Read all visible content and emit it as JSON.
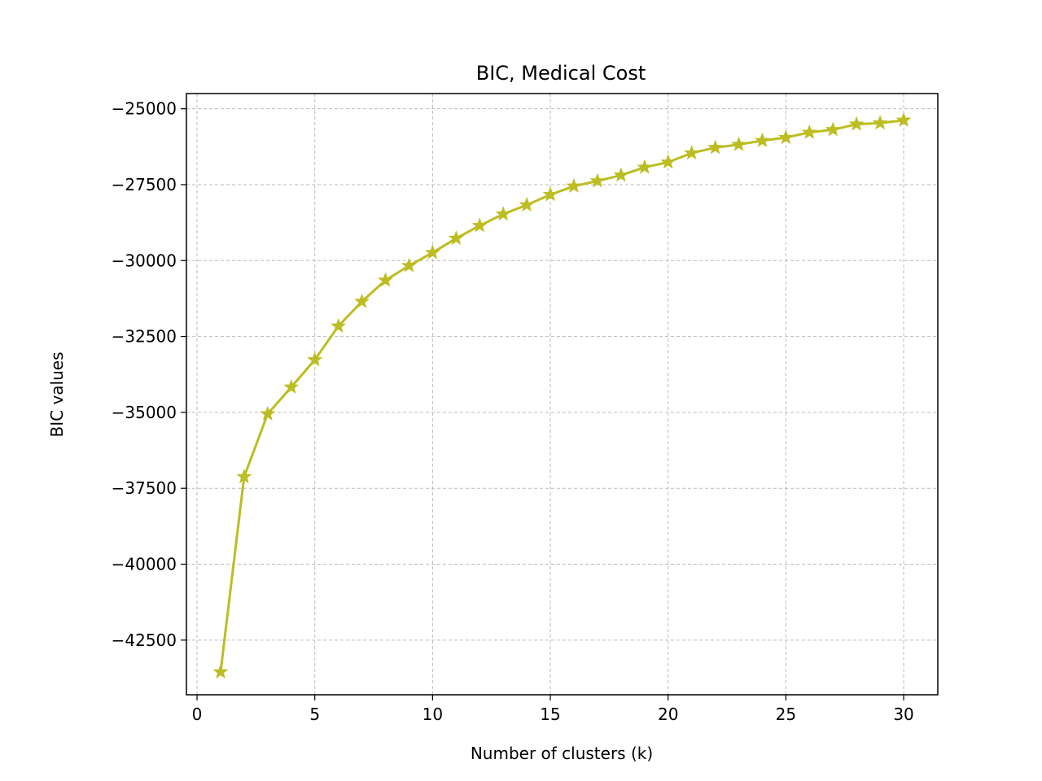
{
  "chart_data": {
    "type": "line",
    "title": "BIC, Medical Cost",
    "xlabel": "Number of clusters (k)",
    "ylabel": "BIC values",
    "xlim": [
      -0.45,
      31.45
    ],
    "ylim": [
      -44300,
      -24500
    ],
    "xticks": [
      0,
      5,
      10,
      15,
      20,
      25,
      30
    ],
    "xtick_labels": [
      "0",
      "5",
      "10",
      "15",
      "20",
      "25",
      "30"
    ],
    "yticks": [
      -25000,
      -27500,
      -30000,
      -32500,
      -35000,
      -37500,
      -40000,
      -42500
    ],
    "ytick_labels": [
      "−25000",
      "−27500",
      "−30000",
      "−32500",
      "−35000",
      "−37500",
      "−40000",
      "−42500"
    ],
    "grid": true,
    "color": "#bcbd22",
    "marker": "star",
    "x": [
      1,
      2,
      3,
      4,
      5,
      6,
      7,
      8,
      9,
      10,
      11,
      12,
      13,
      14,
      15,
      16,
      17,
      18,
      19,
      20,
      21,
      22,
      23,
      24,
      25,
      26,
      27,
      28,
      29,
      30
    ],
    "y": [
      -43550,
      -37120,
      -35050,
      -34170,
      -33270,
      -32160,
      -31350,
      -30650,
      -30170,
      -29740,
      -29270,
      -28850,
      -28470,
      -28170,
      -27830,
      -27550,
      -27380,
      -27190,
      -26930,
      -26760,
      -26460,
      -26280,
      -26180,
      -26050,
      -25950,
      -25780,
      -25690,
      -25510,
      -25470,
      -25380
    ]
  }
}
